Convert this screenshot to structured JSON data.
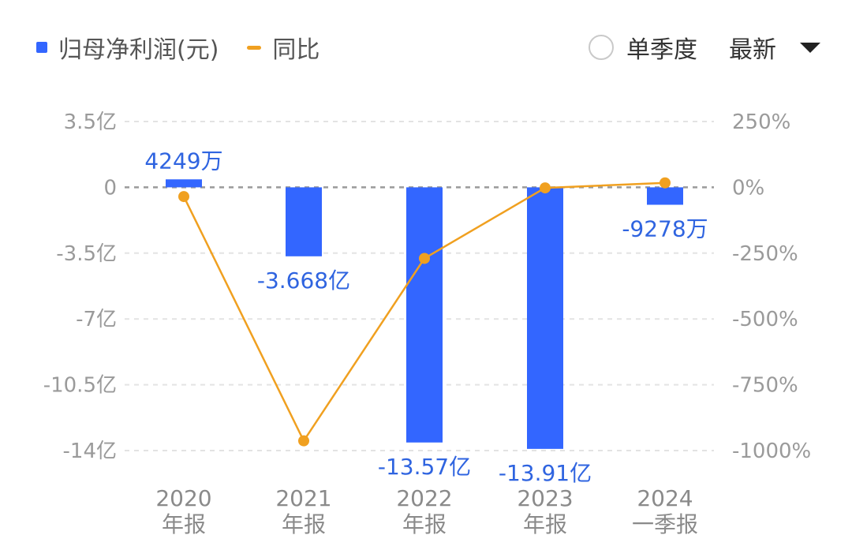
{
  "legend": {
    "bar_label": "归母净利润(元)",
    "line_label": "同比"
  },
  "controls": {
    "quarter_label": "单季度",
    "latest_label": "最新"
  },
  "colors": {
    "bar": "#3366ff",
    "line": "#f0a020",
    "grid": "#e3e3e3",
    "zero_line": "#9a9a9a"
  },
  "chart_data": {
    "type": "bar",
    "categories": [
      [
        "2020",
        "年报"
      ],
      [
        "2021",
        "年报"
      ],
      [
        "2022",
        "年报"
      ],
      [
        "2023",
        "年报"
      ],
      [
        "2024",
        "一季报"
      ]
    ],
    "series": [
      {
        "name": "归母净利润(元)",
        "type": "bar",
        "axis": "left",
        "values": [
          42490000,
          -366800000,
          -1357000000,
          -1391000000,
          -92780000
        ],
        "labels": [
          "4249万",
          "-3.668亿",
          "-13.57亿",
          "-13.91亿",
          "-9278万"
        ]
      },
      {
        "name": "同比",
        "type": "line",
        "axis": "right",
        "values": [
          -35,
          -963,
          -270,
          -2,
          17
        ]
      }
    ],
    "y_left": {
      "ticks": [
        350000000,
        0,
        -350000000,
        -700000000,
        -1050000000,
        -1400000000
      ],
      "tick_labels": [
        "3.5亿",
        "0",
        "-3.5亿",
        "-7亿",
        "-10.5亿",
        "-14亿"
      ],
      "range": [
        -1400000000,
        350000000
      ]
    },
    "y_right": {
      "ticks": [
        250,
        0,
        -250,
        -500,
        -750,
        -1000
      ],
      "tick_labels": [
        "250%",
        "0%",
        "-250%",
        "-500%",
        "-750%",
        "-1000%"
      ],
      "range": [
        -1000,
        250
      ]
    },
    "grid": true,
    "legend_position": "top-left"
  }
}
